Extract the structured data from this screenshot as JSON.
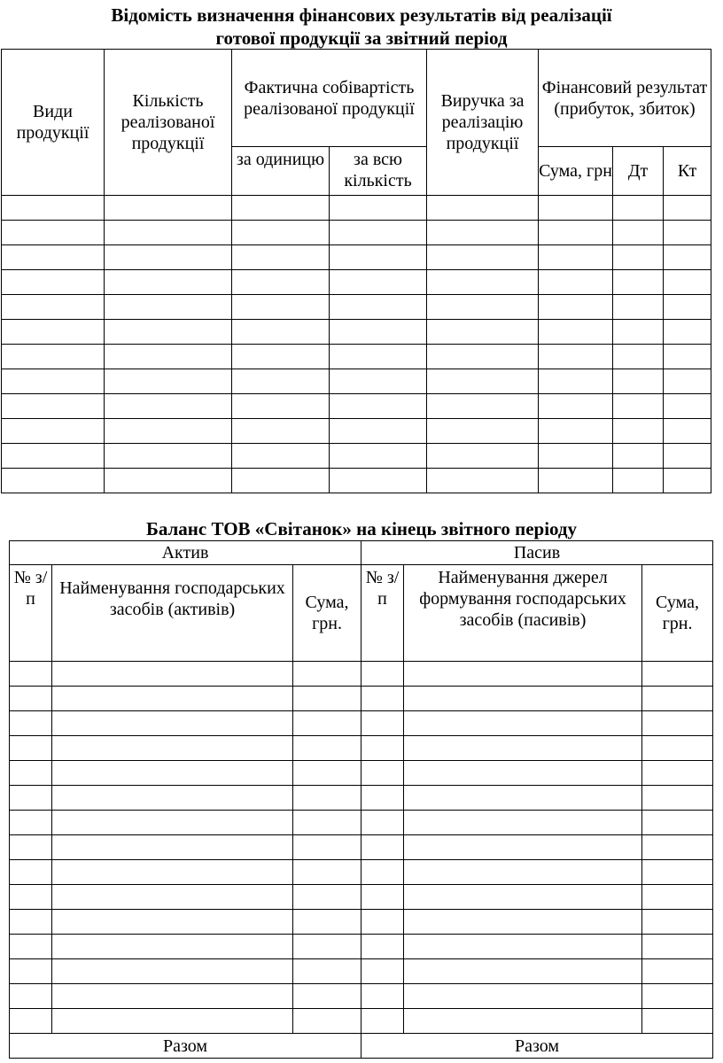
{
  "report": {
    "title_line1": "Відомість визначення фінансових результатів від реалізації",
    "title_line2": "готової продукції за звітний період",
    "headers": {
      "product_types": "Види продукції",
      "quantity_sold": "Кількість реалізованої продукції",
      "actual_cost": "Фактична собівартість реалізованої продукції",
      "per_unit": "за одиницю",
      "total_quantity": "за всю кількість",
      "revenue": "Виручка за реалізацію продукції",
      "financial_result": "Фінансовий результат (прибуток, збиток)",
      "amount_uah": "Сума, грн",
      "debit": "Дт",
      "credit": "Кт"
    }
  },
  "balance": {
    "title": "Баланс ТОВ «Світанок» на кінець звітного періоду",
    "assets": "Актив",
    "liabilities": "Пасив",
    "number": "№ з/п",
    "asset_name": "Найменування господарських засобів (активів)",
    "liability_name": "Найменування джерел формування господарських засобів (пасивів)",
    "amount": "Сума, грн.",
    "total": "Разом"
  }
}
